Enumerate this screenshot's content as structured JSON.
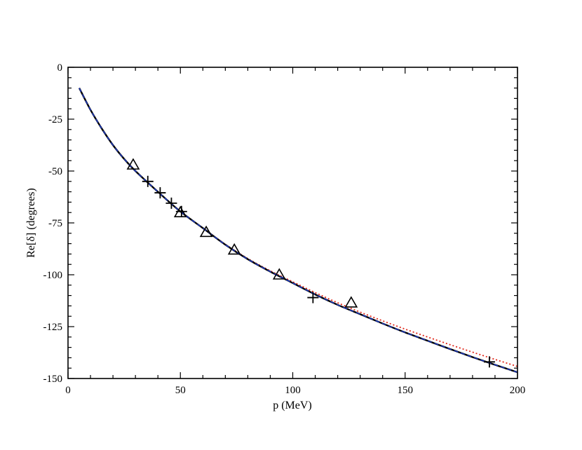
{
  "chart_data": {
    "type": "scatter",
    "title": "",
    "xlabel": "p (MeV)",
    "ylabel": "Re[δ] (degrees)",
    "xlim": [
      0,
      200
    ],
    "ylim": [
      -150,
      0
    ],
    "x_ticks": [
      0,
      50,
      100,
      150,
      200
    ],
    "y_ticks": [
      0,
      -25,
      -50,
      -75,
      -100,
      -125,
      -150
    ],
    "x_tick_labels": [
      "0",
      "50",
      "100",
      "150",
      "200"
    ],
    "y_tick_labels": [
      "0",
      "-25",
      "-50",
      "-75",
      "-100",
      "-125",
      "-150"
    ],
    "grid": false,
    "legend": "none",
    "curves": [
      {
        "style": "solid",
        "color": "#000000",
        "x": [
          5,
          10,
          15,
          20,
          25,
          30,
          40,
          50,
          60,
          70,
          80,
          90,
          100,
          110,
          120,
          130,
          140,
          150,
          160,
          170,
          180,
          190,
          200
        ],
        "y": [
          -10,
          -20.5,
          -29.5,
          -37.5,
          -44.2,
          -50,
          -60,
          -69.5,
          -77.5,
          -85.5,
          -92.5,
          -98.5,
          -104,
          -109.5,
          -114.5,
          -119,
          -123.5,
          -127.8,
          -131.8,
          -135.8,
          -139.7,
          -143.4,
          -147
        ]
      },
      {
        "style": "dashed",
        "color": "#1f3fd8",
        "x": [
          5,
          10,
          15,
          20,
          25,
          30,
          40,
          50,
          60,
          70,
          80,
          90,
          100,
          110,
          120,
          130,
          140,
          150,
          160,
          170,
          180,
          190,
          200
        ],
        "y": [
          -10,
          -20.5,
          -29.5,
          -37.5,
          -44.2,
          -50,
          -60,
          -69.5,
          -77.5,
          -85.5,
          -92.5,
          -98.5,
          -104,
          -109.5,
          -114.5,
          -119,
          -123.5,
          -127.8,
          -131.8,
          -135.8,
          -139.7,
          -143.4,
          -147
        ]
      },
      {
        "style": "dotted",
        "color": "#e0271a",
        "x": [
          5,
          10,
          15,
          20,
          25,
          30,
          40,
          50,
          60,
          70,
          80,
          90,
          100,
          110,
          120,
          130,
          140,
          150,
          160,
          170,
          180,
          190,
          200
        ],
        "y": [
          -10,
          -20.5,
          -29.5,
          -37.5,
          -44.2,
          -50,
          -60,
          -69.5,
          -77.5,
          -85.3,
          -92.2,
          -98.1,
          -103.4,
          -108.6,
          -113.5,
          -118,
          -122.2,
          -126.2,
          -130,
          -133.7,
          -137.3,
          -140.8,
          -144.2
        ]
      }
    ],
    "series": [
      {
        "marker": "plus",
        "x": [
          35.5,
          41,
          46,
          50.5,
          109,
          187.5
        ],
        "y": [
          -55,
          -60.5,
          -65.5,
          -69.5,
          -111,
          -142
        ]
      },
      {
        "marker": "triangle",
        "x": [
          29,
          50,
          61.5,
          74,
          94,
          126
        ],
        "y": [
          -47,
          -70,
          -79.5,
          -88,
          -100,
          -113.5
        ]
      }
    ]
  }
}
